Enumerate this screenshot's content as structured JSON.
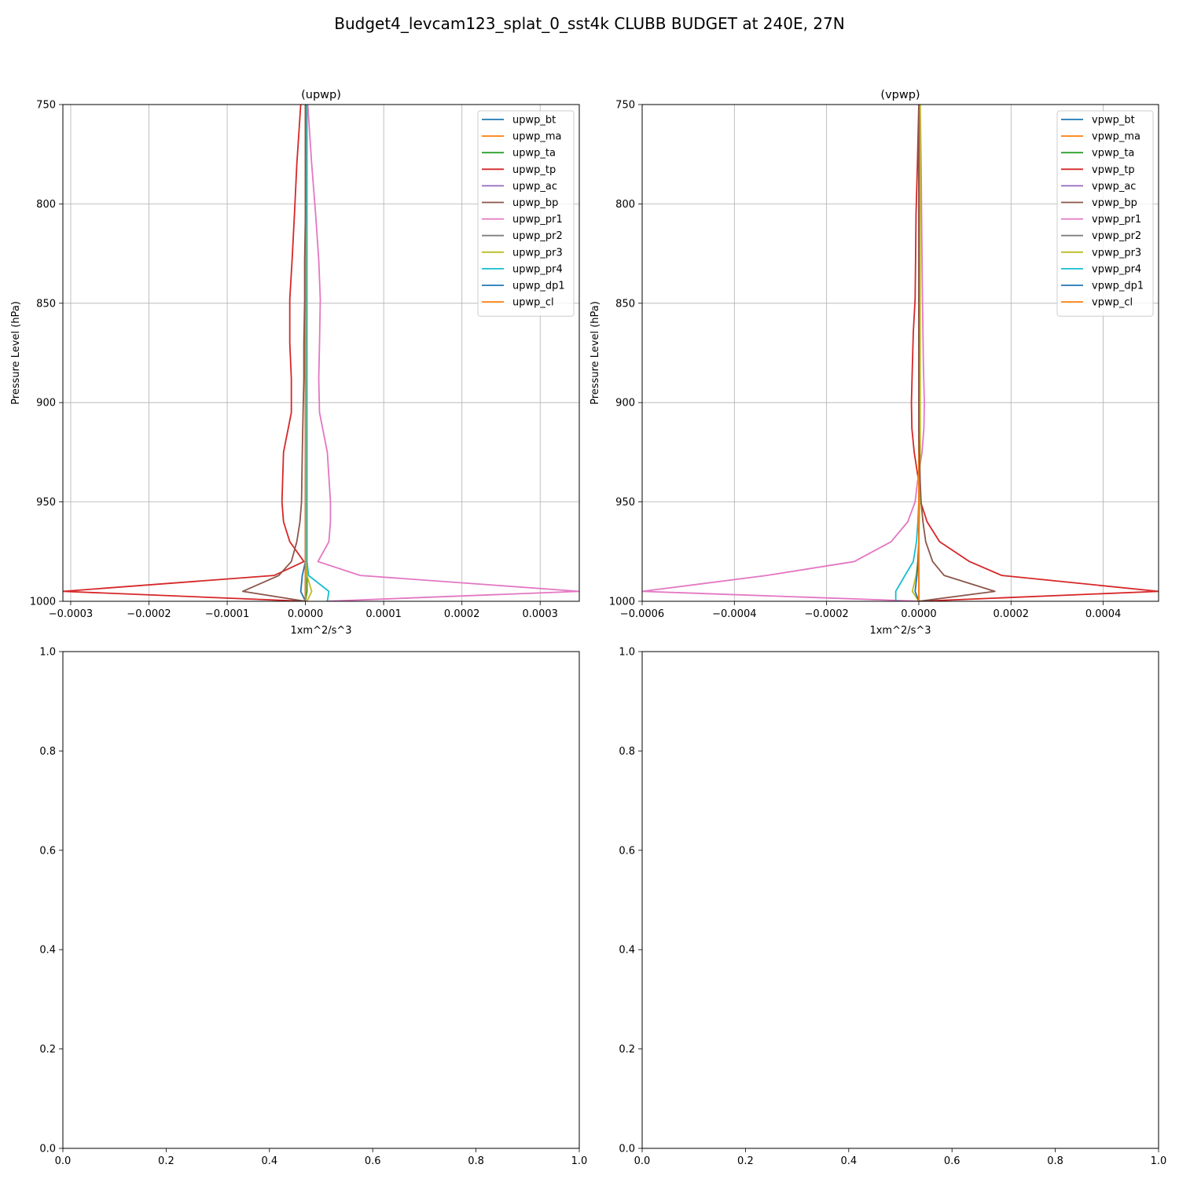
{
  "figure": {
    "title": "Budget4_levcam123_splat_0_sst4k CLUBB BUDGET at 240E, 27N"
  },
  "chart_data": [
    {
      "type": "line",
      "title": "(upwp)",
      "xlabel": "1xm^2/s^3",
      "ylabel": "Pressure Level (hPa)",
      "xlim": [
        -0.00031,
        0.00035
      ],
      "ylim": [
        1000,
        750
      ],
      "y_inverted": true,
      "grid": true,
      "legend_position": "upper-right",
      "x_ticks": [
        -0.0003,
        -0.0002,
        -0.0001,
        0.0,
        0.0001,
        0.0002,
        0.0003
      ],
      "x_tick_labels": [
        "−0.0003",
        "−0.0002",
        "−0.0001",
        "0.0000",
        "0.0001",
        "0.0002",
        "0.0003"
      ],
      "y_ticks": [
        750,
        800,
        850,
        900,
        950,
        1000
      ],
      "y_tick_labels": [
        "750",
        "800",
        "850",
        "900",
        "950",
        "1000"
      ],
      "levels": [
        750,
        780,
        805,
        828,
        848,
        870,
        888,
        905,
        925,
        950,
        960,
        970,
        980,
        987,
        995,
        1000
      ],
      "series": [
        {
          "name": "upwp_bt",
          "color": "#1f77b4",
          "values": [
            0,
            0,
            0,
            0,
            0,
            0,
            0,
            0,
            0,
            0,
            0,
            0,
            0,
            0,
            0,
            0
          ]
        },
        {
          "name": "upwp_ma",
          "color": "#ff7f0e",
          "values": [
            0,
            0,
            0,
            0,
            0,
            0,
            0,
            0,
            0,
            0,
            0,
            0,
            0,
            0,
            0,
            0
          ]
        },
        {
          "name": "upwp_ta",
          "color": "#2ca02c",
          "values": [
            1e-06,
            1e-06,
            1e-06,
            1e-06,
            1e-06,
            1e-06,
            1e-06,
            1e-06,
            1e-06,
            2e-06,
            2e-06,
            2e-06,
            2e-06,
            2e-06,
            2e-06,
            0
          ]
        },
        {
          "name": "upwp_tp",
          "color": "#d62728",
          "values": [
            -6e-06,
            -1.1e-05,
            -1.4e-05,
            -1.7e-05,
            -2e-05,
            -2e-05,
            -1.8e-05,
            -1.8e-05,
            -2.8e-05,
            -3e-05,
            -2.8e-05,
            -2e-05,
            -2e-06,
            -4e-05,
            -0.00031,
            0
          ]
        },
        {
          "name": "upwp_ac",
          "color": "#9467bd",
          "values": [
            0,
            0,
            0,
            0,
            0,
            0,
            0,
            0,
            0,
            0,
            0,
            0,
            0,
            0,
            0,
            0
          ]
        },
        {
          "name": "upwp_bp",
          "color": "#8c564b",
          "values": [
            0,
            0,
            0,
            0,
            0,
            0,
            0,
            0,
            0,
            0,
            0,
            0,
            0,
            0,
            0,
            0
          ]
        },
        {
          "name": "upwp_pr1",
          "color": "#e377c2",
          "values": [
            3e-06,
            8e-06,
            1.3e-05,
            1.7e-05,
            1.9e-05,
            1.8e-05,
            1.7e-05,
            1.8e-05,
            2.8e-05,
            3.2e-05,
            3.2e-05,
            3e-05,
            1.6e-05,
            7e-05,
            0.00035,
            2.6e-05
          ]
        },
        {
          "name": "upwp_pr2",
          "color": "#7f7f7f",
          "values": [
            0,
            0,
            0,
            0,
            0,
            0,
            0,
            0,
            0,
            0,
            0,
            0,
            0,
            0,
            0,
            0
          ]
        },
        {
          "name": "upwp_pr3",
          "color": "#bcbd22",
          "values": [
            1e-06,
            1e-06,
            1e-06,
            1e-06,
            1e-06,
            1e-06,
            1e-06,
            1e-06,
            1e-06,
            1e-06,
            1e-06,
            1e-06,
            1e-06,
            2e-06,
            8e-06,
            2e-06
          ]
        },
        {
          "name": "upwp_pr4",
          "color": "#17becf",
          "values": [
            2e-06,
            2e-06,
            2e-06,
            2e-06,
            2e-06,
            2e-06,
            2e-06,
            2e-06,
            2e-06,
            2e-06,
            2e-06,
            2e-06,
            2e-06,
            4e-06,
            3e-05,
            2.8e-05
          ]
        },
        {
          "name": "upwp_dp1",
          "color": "#1f77b4",
          "values": [
            0,
            0,
            0,
            0,
            0,
            0,
            0,
            0,
            0,
            0,
            0,
            0,
            0,
            -4e-06,
            -6e-06,
            0
          ]
        },
        {
          "name": "upwp_cl",
          "color": "#ff7f0e",
          "values": [
            0,
            0,
            0,
            0,
            0,
            0,
            0,
            0,
            0,
            0,
            0,
            0,
            0,
            0,
            0,
            0
          ]
        }
      ],
      "extra_lines": [
        {
          "color": "#8c564b",
          "values": [
            0,
            0,
            0,
            -1e-06,
            -1e-06,
            -2e-06,
            -2e-06,
            -3e-06,
            -4e-06,
            -5e-06,
            -7e-06,
            -1.1e-05,
            -1.8e-05,
            -3.4e-05,
            -8e-05,
            0
          ]
        }
      ]
    },
    {
      "type": "line",
      "title": "(vpwp)",
      "xlabel": "1xm^2/s^3",
      "ylabel": "Pressure Level (hPa)",
      "xlim": [
        -0.0006,
        0.00052
      ],
      "ylim": [
        1000,
        750
      ],
      "y_inverted": true,
      "grid": true,
      "legend_position": "upper-right",
      "x_ticks": [
        -0.0006,
        -0.0004,
        -0.0002,
        0.0,
        0.0002,
        0.0004
      ],
      "x_tick_labels": [
        "−0.0006",
        "−0.0004",
        "−0.0002",
        "0.0000",
        "0.0002",
        "0.0004"
      ],
      "y_ticks": [
        750,
        800,
        850,
        900,
        950,
        1000
      ],
      "y_tick_labels": [
        "750",
        "800",
        "850",
        "900",
        "950",
        "1000"
      ],
      "levels": [
        750,
        780,
        805,
        828,
        848,
        865,
        882,
        900,
        913,
        925,
        940,
        950,
        960,
        970,
        980,
        987,
        995,
        1000
      ],
      "series": [
        {
          "name": "vpwp_bt",
          "color": "#1f77b4",
          "values": [
            0,
            0,
            0,
            0,
            0,
            0,
            0,
            0,
            0,
            0,
            0,
            0,
            0,
            0,
            0,
            0,
            0,
            0
          ]
        },
        {
          "name": "vpwp_ma",
          "color": "#ff7f0e",
          "values": [
            0,
            0,
            0,
            0,
            0,
            0,
            0,
            0,
            0,
            0,
            0,
            0,
            0,
            0,
            0,
            0,
            0,
            0
          ]
        },
        {
          "name": "vpwp_ta",
          "color": "#2ca02c",
          "values": [
            0,
            0,
            0,
            0,
            0,
            0,
            0,
            0,
            0,
            0,
            0,
            0,
            0,
            0,
            0,
            0,
            0,
            0
          ]
        },
        {
          "name": "vpwp_tp",
          "color": "#d62728",
          "values": [
            0,
            -3e-06,
            -6e-06,
            -7e-06,
            -8e-06,
            -1.2e-05,
            -1.4e-05,
            -1.6e-05,
            -1.5e-05,
            -1e-05,
            0,
            4e-06,
            1.8e-05,
            4.5e-05,
            0.00011,
            0.00018,
            0.00052,
            0
          ]
        },
        {
          "name": "vpwp_ac",
          "color": "#9467bd",
          "values": [
            0,
            0,
            0,
            0,
            0,
            0,
            0,
            0,
            0,
            0,
            0,
            0,
            0,
            0,
            0,
            0,
            0,
            0
          ]
        },
        {
          "name": "vpwp_bp",
          "color": "#8c564b",
          "values": [
            0,
            0,
            0,
            0,
            0,
            0,
            0,
            0,
            0,
            0,
            0,
            0,
            0,
            0,
            0,
            0,
            0,
            0
          ]
        },
        {
          "name": "vpwp_pr1",
          "color": "#e377c2",
          "values": [
            3e-06,
            5e-06,
            6e-06,
            7e-06,
            8e-06,
            9e-06,
            1e-05,
            1.2e-05,
            1.1e-05,
            7e-06,
            -3e-06,
            -8e-06,
            -2.4e-05,
            -6e-05,
            -0.00014,
            -0.00033,
            -0.0006,
            5e-06
          ]
        },
        {
          "name": "vpwp_pr2",
          "color": "#7f7f7f",
          "values": [
            0,
            0,
            0,
            0,
            0,
            0,
            0,
            0,
            0,
            0,
            0,
            0,
            0,
            0,
            0,
            0,
            0,
            0
          ]
        },
        {
          "name": "vpwp_pr3",
          "color": "#bcbd22",
          "values": [
            3e-06,
            3e-06,
            3e-06,
            3e-06,
            3e-06,
            3e-06,
            3e-06,
            3e-06,
            3e-06,
            3e-06,
            2e-06,
            2e-06,
            1e-06,
            0,
            -2e-06,
            -6e-06,
            -1.4e-05,
            0
          ]
        },
        {
          "name": "vpwp_pr4",
          "color": "#17becf",
          "values": [
            0,
            0,
            0,
            0,
            0,
            0,
            0,
            0,
            0,
            0,
            0,
            0,
            -2e-06,
            -5e-06,
            -1.2e-05,
            -3e-05,
            -5e-05,
            -5e-05
          ]
        },
        {
          "name": "vpwp_dp1",
          "color": "#1f77b4",
          "values": [
            0,
            0,
            0,
            0,
            0,
            0,
            0,
            0,
            0,
            0,
            0,
            0,
            0,
            0,
            -2e-06,
            -4e-06,
            -8e-06,
            0
          ]
        },
        {
          "name": "vpwp_cl",
          "color": "#ff7f0e",
          "values": [
            0,
            0,
            0,
            0,
            0,
            0,
            0,
            0,
            0,
            0,
            0,
            0,
            0,
            0,
            0,
            0,
            0,
            0
          ]
        }
      ],
      "extra_lines": [
        {
          "color": "#8c564b",
          "values": [
            0,
            0,
            0,
            0,
            0,
            0,
            0,
            0,
            0,
            1e-06,
            3e-06,
            5e-06,
            9e-06,
            1.5e-05,
            3e-05,
            5.5e-05,
            0.000165,
            0
          ]
        }
      ]
    },
    {
      "type": "line",
      "title": "",
      "xlim": [
        0,
        1
      ],
      "ylim": [
        0,
        1
      ],
      "grid": false,
      "x_ticks": [
        0,
        0.2,
        0.4,
        0.6,
        0.8,
        1.0
      ],
      "x_tick_labels": [
        "0.0",
        "0.2",
        "0.4",
        "0.6",
        "0.8",
        "1.0"
      ],
      "y_ticks": [
        0,
        0.2,
        0.4,
        0.6,
        0.8,
        1.0
      ],
      "y_tick_labels": [
        "0.0",
        "0.2",
        "0.4",
        "0.6",
        "0.8",
        "1.0"
      ],
      "series": []
    },
    {
      "type": "line",
      "title": "",
      "xlim": [
        0,
        1
      ],
      "ylim": [
        0,
        1
      ],
      "grid": false,
      "x_ticks": [
        0,
        0.2,
        0.4,
        0.6,
        0.8,
        1.0
      ],
      "x_tick_labels": [
        "0.0",
        "0.2",
        "0.4",
        "0.6",
        "0.8",
        "1.0"
      ],
      "y_ticks": [
        0,
        0.2,
        0.4,
        0.6,
        0.8,
        1.0
      ],
      "y_tick_labels": [
        "0.0",
        "0.2",
        "0.4",
        "0.6",
        "0.8",
        "1.0"
      ],
      "series": []
    }
  ]
}
